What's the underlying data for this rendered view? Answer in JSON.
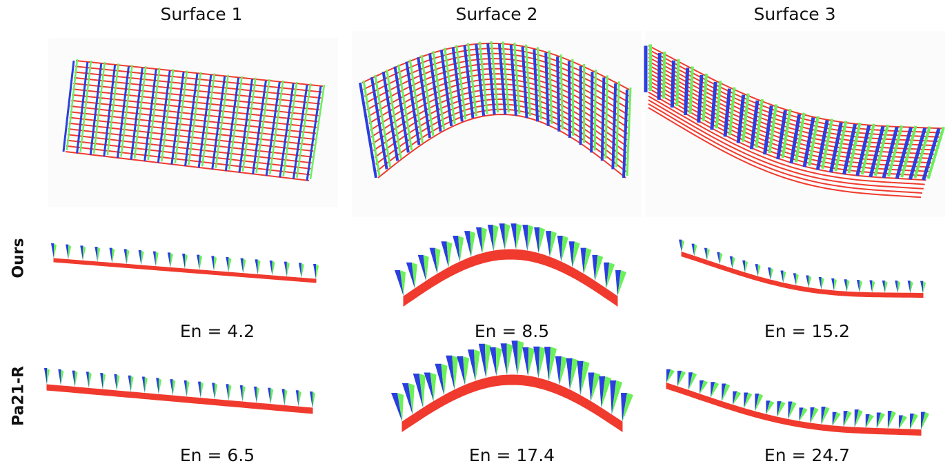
{
  "columns": [
    "Surface 1",
    "Surface 2",
    "Surface 3"
  ],
  "rows": [
    "Ours",
    "Pa21-R"
  ],
  "energies": {
    "ours": [
      "En = 4.2",
      "En = 8.5",
      "En = 15.2"
    ],
    "pa21r": [
      "En = 6.5",
      "En = 17.4",
      "En = 24.7"
    ]
  },
  "colors": {
    "rod": "#f03a2e",
    "normal": "#2b3fe0",
    "binormal": "#6af05a"
  }
}
